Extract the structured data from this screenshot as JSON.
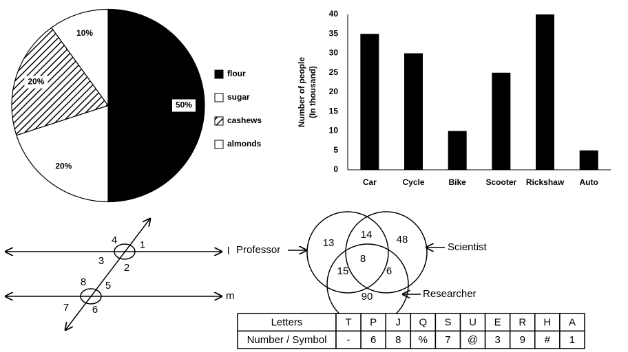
{
  "chart_data": [
    {
      "type": "pie",
      "categories": [
        "flour",
        "sugar",
        "cashews",
        "almonds"
      ],
      "values": [
        50,
        20,
        20,
        10
      ],
      "value_labels": [
        "50%",
        "20%",
        "20%",
        "10%"
      ],
      "fills": [
        "black",
        "white",
        "hatch",
        "white"
      ]
    },
    {
      "type": "bar",
      "ylabel": [
        "Number of people",
        "(In thousand)"
      ],
      "categories": [
        "Car",
        "Cycle",
        "Bike",
        "Scooter",
        "Rickshaw",
        "Auto"
      ],
      "values": [
        35,
        30,
        10,
        25,
        40,
        5
      ],
      "color": "#000000",
      "ylim": [
        0,
        40
      ],
      "yticks": [
        0,
        5,
        10,
        15,
        20,
        25,
        30,
        35,
        40
      ],
      "grid": false
    }
  ],
  "angle_diagram": {
    "line_labels": [
      "l",
      "m"
    ],
    "angle_labels": [
      "1",
      "2",
      "3",
      "4",
      "5",
      "6",
      "7",
      "8"
    ]
  },
  "venn": {
    "sets": [
      "Professor",
      "Scientist",
      "Researcher"
    ],
    "regions": [
      13,
      14,
      48,
      8,
      15,
      6,
      90
    ]
  },
  "table": {
    "rows": [
      [
        "Letters",
        "T",
        "P",
        "J",
        "Q",
        "S",
        "U",
        "E",
        "R",
        "H",
        "A"
      ],
      [
        "Number / Symbol",
        "-",
        "6",
        "8",
        "%",
        "7",
        "@",
        "3",
        "9",
        "#",
        "1"
      ]
    ]
  }
}
